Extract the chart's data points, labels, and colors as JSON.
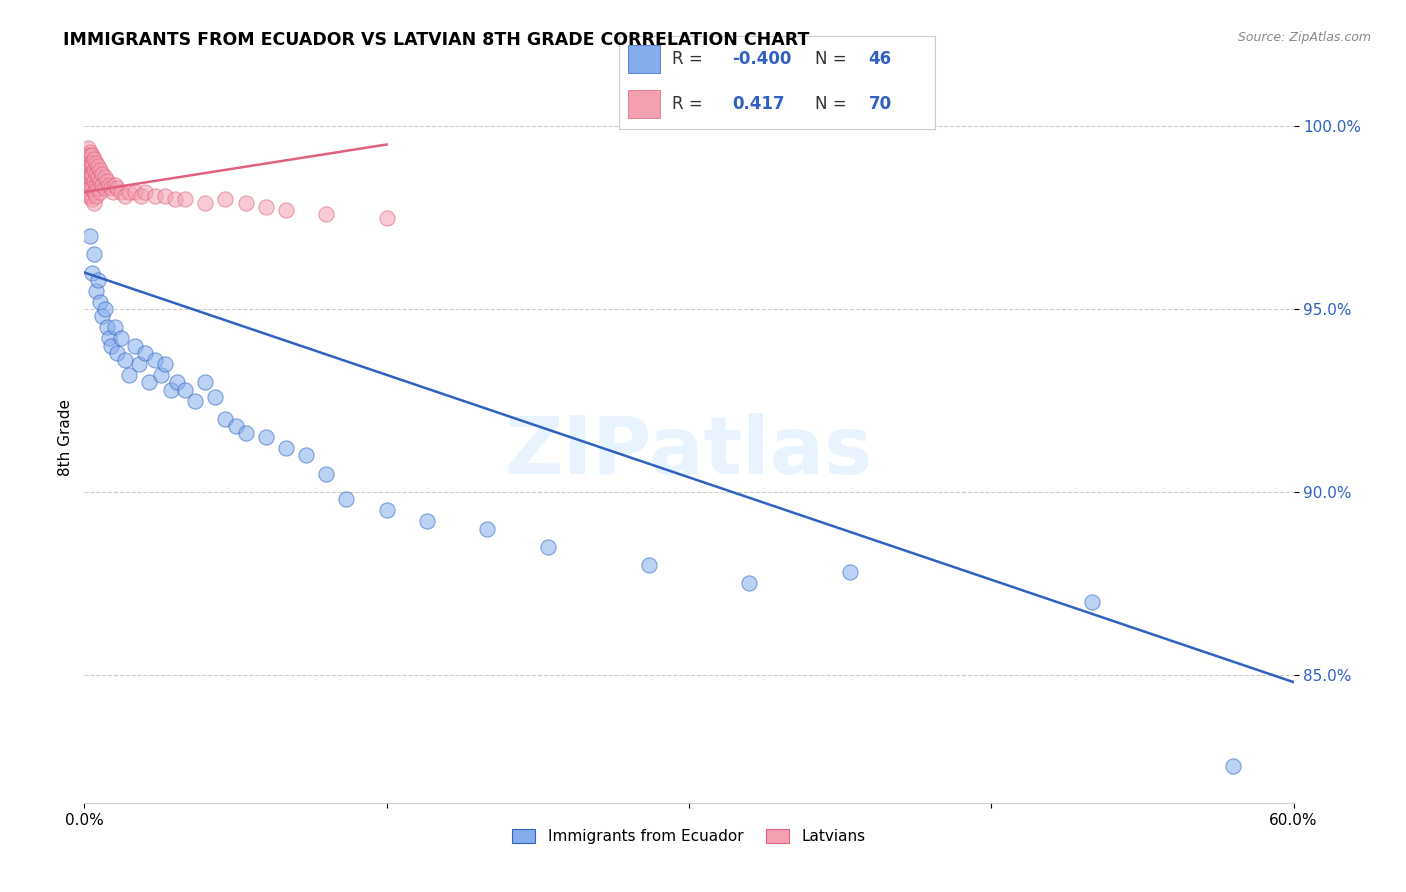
{
  "title": "IMMIGRANTS FROM ECUADOR VS LATVIAN 8TH GRADE CORRELATION CHART",
  "source": "Source: ZipAtlas.com",
  "ylabel": "8th Grade",
  "yticks": [
    "85.0%",
    "90.0%",
    "95.0%",
    "100.0%"
  ],
  "ytick_vals": [
    0.85,
    0.9,
    0.95,
    1.0
  ],
  "xlim": [
    0.0,
    0.6
  ],
  "ylim": [
    0.815,
    1.015
  ],
  "legend_blue_R": "-0.400",
  "legend_blue_N": "46",
  "legend_pink_R": "0.417",
  "legend_pink_N": "70",
  "legend_label_blue": "Immigrants from Ecuador",
  "legend_label_pink": "Latvians",
  "blue_color": "#85ADEE",
  "pink_color": "#F4A0B0",
  "blue_line_color": "#3060C0",
  "pink_line_color": "#E06080",
  "watermark": "ZIPatlas",
  "blue_scatter_x": [
    0.003,
    0.004,
    0.005,
    0.006,
    0.007,
    0.008,
    0.009,
    0.01,
    0.011,
    0.012,
    0.013,
    0.015,
    0.016,
    0.018,
    0.02,
    0.022,
    0.025,
    0.027,
    0.03,
    0.032,
    0.035,
    0.038,
    0.04,
    0.043,
    0.046,
    0.05,
    0.055,
    0.06,
    0.065,
    0.07,
    0.075,
    0.08,
    0.09,
    0.1,
    0.11,
    0.12,
    0.13,
    0.15,
    0.17,
    0.2,
    0.23,
    0.28,
    0.33,
    0.38,
    0.5,
    0.57
  ],
  "blue_scatter_y": [
    0.97,
    0.96,
    0.965,
    0.955,
    0.958,
    0.952,
    0.948,
    0.95,
    0.945,
    0.942,
    0.94,
    0.945,
    0.938,
    0.942,
    0.936,
    0.932,
    0.94,
    0.935,
    0.938,
    0.93,
    0.936,
    0.932,
    0.935,
    0.928,
    0.93,
    0.928,
    0.925,
    0.93,
    0.926,
    0.92,
    0.918,
    0.916,
    0.915,
    0.912,
    0.91,
    0.905,
    0.898,
    0.895,
    0.892,
    0.89,
    0.885,
    0.88,
    0.875,
    0.878,
    0.87,
    0.825
  ],
  "pink_scatter_x": [
    0.001,
    0.001,
    0.001,
    0.002,
    0.002,
    0.002,
    0.002,
    0.002,
    0.002,
    0.002,
    0.002,
    0.002,
    0.003,
    0.003,
    0.003,
    0.003,
    0.003,
    0.003,
    0.003,
    0.003,
    0.003,
    0.004,
    0.004,
    0.004,
    0.004,
    0.004,
    0.004,
    0.004,
    0.005,
    0.005,
    0.005,
    0.005,
    0.005,
    0.006,
    0.006,
    0.006,
    0.006,
    0.007,
    0.007,
    0.007,
    0.008,
    0.008,
    0.008,
    0.009,
    0.009,
    0.01,
    0.01,
    0.011,
    0.012,
    0.013,
    0.014,
    0.015,
    0.016,
    0.018,
    0.02,
    0.022,
    0.025,
    0.028,
    0.03,
    0.035,
    0.04,
    0.045,
    0.05,
    0.06,
    0.07,
    0.08,
    0.09,
    0.1,
    0.12,
    0.15
  ],
  "pink_scatter_y": [
    0.992,
    0.988,
    0.985,
    0.994,
    0.991,
    0.988,
    0.985,
    0.982,
    0.99,
    0.987,
    0.984,
    0.981,
    0.993,
    0.99,
    0.987,
    0.984,
    0.981,
    0.992,
    0.989,
    0.986,
    0.983,
    0.992,
    0.989,
    0.986,
    0.983,
    0.98,
    0.99,
    0.987,
    0.991,
    0.988,
    0.985,
    0.982,
    0.979,
    0.99,
    0.987,
    0.984,
    0.981,
    0.989,
    0.986,
    0.983,
    0.988,
    0.985,
    0.982,
    0.987,
    0.984,
    0.986,
    0.983,
    0.985,
    0.984,
    0.983,
    0.982,
    0.984,
    0.983,
    0.982,
    0.981,
    0.982,
    0.982,
    0.981,
    0.982,
    0.981,
    0.981,
    0.98,
    0.98,
    0.979,
    0.98,
    0.979,
    0.978,
    0.977,
    0.976,
    0.975
  ],
  "blue_line_x": [
    0.0,
    0.6
  ],
  "blue_line_y": [
    0.96,
    0.848
  ],
  "pink_line_x": [
    0.0,
    0.15
  ],
  "pink_line_y": [
    0.982,
    0.995
  ]
}
